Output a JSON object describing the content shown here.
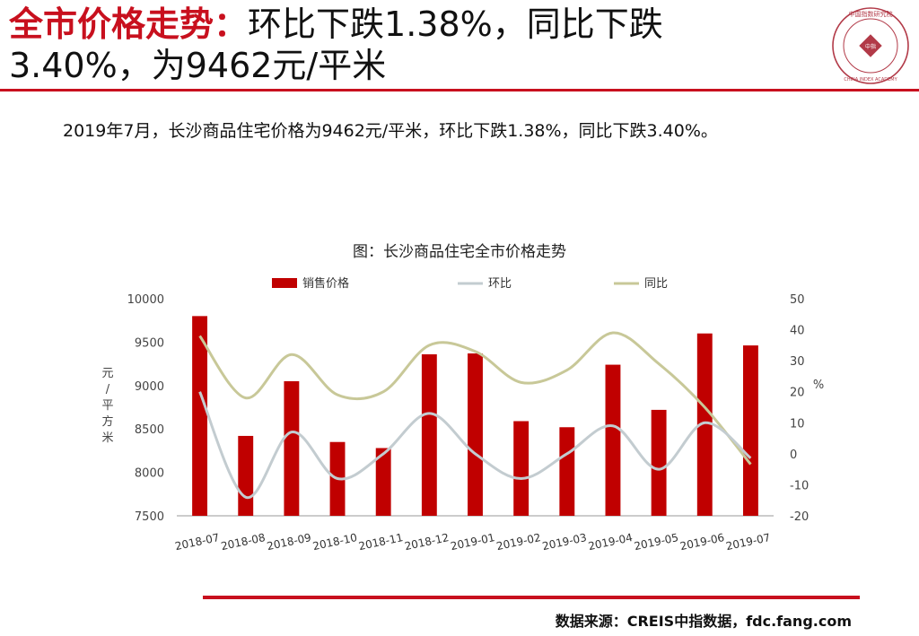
{
  "header": {
    "title_highlight": "全市价格走势：",
    "title_line1_rest": "环比下跌1.38%，同比下跌",
    "title_line2": "3.40%，为9462元/平米",
    "logo_text_top": "中国指数研究院",
    "logo_text_center": "中指",
    "logo_text_bottom": "CHINA INDEX ACADEMY",
    "accent_color": "#c8101e"
  },
  "summary_text": "2019年7月，长沙商品住宅价格为9462元/平米，环比下跌1.38%，同比下跌3.40%。",
  "chart_data": {
    "type": "bar",
    "title": "图：长沙商品住宅全市价格走势",
    "categories": [
      "2018-07",
      "2018-08",
      "2018-09",
      "2018-10",
      "2018-11",
      "2018-12",
      "2019-01",
      "2019-02",
      "2019-03",
      "2019-04",
      "2019-05",
      "2019-06",
      "2019-07"
    ],
    "series": [
      {
        "name": "销售价格",
        "type": "bar",
        "axis": "left",
        "color": "#c00000",
        "values": [
          9800,
          8420,
          9050,
          8350,
          8280,
          9360,
          9370,
          8590,
          8520,
          9240,
          8720,
          9600,
          9462
        ]
      },
      {
        "name": "环比",
        "type": "line",
        "axis": "right",
        "color": "#c3ccd0",
        "values": [
          20,
          -14,
          7,
          -8,
          0,
          13,
          0,
          -8,
          0,
          9,
          -5,
          10,
          -1.38
        ]
      },
      {
        "name": "同比",
        "type": "line",
        "axis": "right",
        "color": "#c8c898",
        "values": [
          38,
          18,
          32,
          19,
          20,
          35,
          33,
          23,
          27,
          39,
          29,
          15,
          -3.4
        ]
      }
    ],
    "ylabel": "元/平方米",
    "ylabel_right": "%",
    "ylim": [
      7500,
      10000
    ],
    "ylim_right": [
      -20,
      50
    ],
    "yticks": [
      7500,
      8000,
      8500,
      9000,
      9500,
      10000
    ],
    "yticks_right": [
      -20,
      -10,
      0,
      10,
      20,
      30,
      40,
      50
    ],
    "legend_position": "top",
    "grid": false
  },
  "footer": {
    "source": "数据来源：CREIS中指数据，fdc.fang.com"
  }
}
